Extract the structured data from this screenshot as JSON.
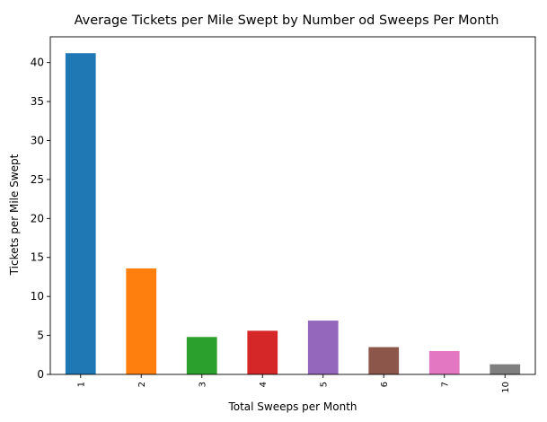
{
  "chart_data": {
    "type": "bar",
    "title": "Average Tickets per Mile Swept by Number od Sweeps Per Month",
    "xlabel": "Total Sweeps per Month",
    "ylabel": "Tickets per Mile Swept",
    "categories": [
      "1",
      "2",
      "3",
      "4",
      "5",
      "6",
      "7",
      "10"
    ],
    "values": [
      41.2,
      13.6,
      4.8,
      5.6,
      6.9,
      3.5,
      3.0,
      1.3
    ],
    "colors": [
      "#1f77b4",
      "#ff7f0e",
      "#2ca02c",
      "#d62728",
      "#9467bd",
      "#8c564b",
      "#e377c2",
      "#7f7f7f"
    ],
    "yticks": [
      0,
      5,
      10,
      15,
      20,
      25,
      30,
      35,
      40
    ],
    "ylim": [
      0,
      43.3
    ],
    "grid": false,
    "legend": "none"
  }
}
